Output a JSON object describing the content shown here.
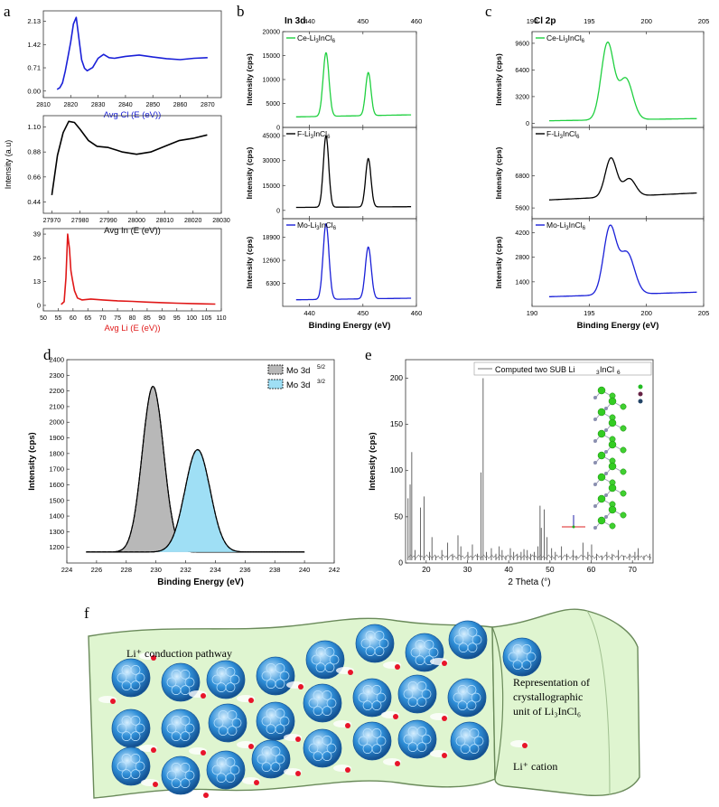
{
  "panels": {
    "a": "a",
    "b": "b",
    "c": "c",
    "d": "d",
    "e": "e",
    "f": "f"
  },
  "colors": {
    "green": "#20d040",
    "black": "#000000",
    "blue": "#1a20d8",
    "red": "#e01818",
    "gray_fill": "#b8b8b8",
    "cyan_fill": "#9fdff5",
    "sheet": "#dff5d0",
    "sheet_edge": "#6a8a5a",
    "spe": "#7a7a7a",
    "sphere": "#2f8fd8",
    "li": "#e8142a"
  },
  "chart_data": [
    {
      "id": "a1",
      "type": "line",
      "xlabel": "Avg Cl (E (eV))",
      "ylabel": "",
      "xlim": [
        2810,
        2875
      ],
      "ylim": [
        -0.2,
        2.45
      ],
      "xticks": [
        "2810",
        "2820",
        "2830",
        "2840",
        "2850",
        "2860",
        "2870"
      ],
      "yticks": [
        "0.00",
        "0.71",
        "1.42",
        "2.13"
      ],
      "x": [
        2815,
        2816,
        2817,
        2818,
        2819,
        2820,
        2821,
        2822,
        2823,
        2824,
        2825,
        2826,
        2828,
        2830,
        2832,
        2834,
        2836,
        2840,
        2845,
        2850,
        2855,
        2860,
        2865,
        2870
      ],
      "y": [
        0.05,
        0.1,
        0.25,
        0.6,
        1.05,
        1.5,
        2.05,
        2.25,
        1.6,
        0.95,
        0.7,
        0.62,
        0.72,
        1.0,
        1.12,
        1.02,
        1.0,
        1.06,
        1.1,
        1.04,
        0.99,
        0.96,
        1.0,
        1.02
      ]
    },
    {
      "id": "a2",
      "type": "line",
      "xlabel": "Avg In (E (eV))",
      "ylabel": "Intensity (a.u)",
      "xlim": [
        27967,
        28030
      ],
      "ylim": [
        0.34,
        1.2
      ],
      "xticks": [
        "27970",
        "27980",
        "27990",
        "28000",
        "28010",
        "28020",
        "28030"
      ],
      "yticks": [
        "0.44",
        "0.66",
        "0.88",
        "1.10"
      ],
      "x": [
        27970,
        27972,
        27974,
        27976,
        27978,
        27980,
        27983,
        27986,
        27990,
        27995,
        28000,
        28005,
        28010,
        28015,
        28020,
        28025
      ],
      "y": [
        0.5,
        0.85,
        1.05,
        1.15,
        1.14,
        1.08,
        0.98,
        0.93,
        0.92,
        0.88,
        0.86,
        0.88,
        0.93,
        0.98,
        1.0,
        1.03
      ]
    },
    {
      "id": "a3",
      "type": "line",
      "xlabel": "Avg Li (E (eV))",
      "ylabel": "",
      "xlim": [
        50,
        110
      ],
      "ylim": [
        -3,
        42
      ],
      "xticks": [
        "50",
        "55",
        "60",
        "65",
        "70",
        "75",
        "80",
        "85",
        "90",
        "95",
        "100",
        "105",
        "110"
      ],
      "yticks": [
        "0",
        "13",
        "26",
        "39"
      ],
      "x": [
        56,
        57,
        57.6,
        58.2,
        58.8,
        59.3,
        59.8,
        60.5,
        61.5,
        63,
        66,
        70,
        75,
        80,
        85,
        90,
        95,
        100,
        105,
        108
      ],
      "y": [
        0.5,
        2,
        15,
        39,
        31,
        19,
        14,
        8,
        4,
        3,
        3.5,
        3,
        2.5,
        2.2,
        1.8,
        1.5,
        1.2,
        1,
        0.8,
        0.7
      ]
    },
    {
      "id": "b",
      "type": "line",
      "title": "In 3d",
      "xlabel": "Binding Energy (eV)",
      "xlim": [
        435,
        460
      ],
      "xticks": [
        "440",
        "450",
        "460"
      ],
      "series": [
        {
          "name": "Ce-Li3InCl6",
          "ylabel": "Intensity (cps)",
          "ylim": [
            0,
            20000
          ],
          "yticks": [
            "0",
            "5000",
            "10000",
            "15000",
            "20000"
          ],
          "peaks": [
            [
              443.1,
              15500,
              0.55
            ],
            [
              451.0,
              11200,
              0.5
            ]
          ],
          "base": 2200
        },
        {
          "name": "F-Li3InCl6",
          "ylabel": "Intensity (cps)",
          "ylim": [
            -5000,
            50000
          ],
          "yticks": [
            "0",
            "15000",
            "30000",
            "45000"
          ],
          "peaks": [
            [
              443.1,
              45000,
              0.5
            ],
            [
              451.0,
              31000,
              0.5
            ]
          ],
          "base": 1800
        },
        {
          "name": "Mo-Li3InCl6",
          "ylabel": "Intensity (cps)",
          "ylim": [
            0,
            24000
          ],
          "yticks": [
            "6300",
            "12600",
            "18900"
          ],
          "peaks": [
            [
              443.1,
              22500,
              0.55
            ],
            [
              451.0,
              16000,
              0.55
            ]
          ],
          "base": 1800
        }
      ]
    },
    {
      "id": "c",
      "type": "line",
      "title": "Cl 2p",
      "xlabel": "Binding Energy (eV)",
      "xlim": [
        190,
        205
      ],
      "xticks": [
        "190",
        "195",
        "200",
        "205"
      ],
      "series": [
        {
          "name": "Ce-Li3InCl6",
          "ylabel": "Intensity (cps)",
          "ylim": [
            -500,
            11000
          ],
          "yticks": [
            "0",
            "3200",
            "6400",
            "9600"
          ],
          "peaks": [
            [
              196.6,
              9500,
              0.55
            ],
            [
              198.2,
              5200,
              0.6
            ]
          ],
          "base": 300
        },
        {
          "name": "F-Li3InCl6",
          "ylabel": "Intensity (cps)",
          "ylim": [
            5200,
            8600
          ],
          "yticks": [
            "5600",
            "6800"
          ],
          "peaks": [
            [
              196.9,
              7350,
              0.5
            ],
            [
              198.5,
              6550,
              0.55
            ]
          ],
          "base": 5900
        },
        {
          "name": "Mo-Li3InCl6",
          "ylabel": "Intensity (cps)",
          "ylim": [
            0,
            5000
          ],
          "yticks": [
            "1400",
            "2800",
            "4200"
          ],
          "peaks": [
            [
              196.8,
              4350,
              0.55
            ],
            [
              198.3,
              2900,
              0.65
            ]
          ],
          "base": 550
        }
      ]
    },
    {
      "id": "d",
      "type": "area",
      "xlabel": "Binding Energy (eV)",
      "ylabel": "Intensity (cps)",
      "xlim": [
        224,
        242
      ],
      "ylim": [
        1100,
        2400
      ],
      "xticks": [
        "224",
        "226",
        "228",
        "230",
        "232",
        "234",
        "236",
        "238",
        "240",
        "242"
      ],
      "yticks": [
        "1200",
        "1300",
        "1400",
        "1500",
        "1600",
        "1700",
        "1800",
        "1900",
        "2000",
        "2100",
        "2200",
        "2300",
        "2400"
      ],
      "baseline": 1170,
      "range": [
        225.3,
        240
      ],
      "series": [
        {
          "name": "Mo 3d",
          "sup": "5/2",
          "center": 229.8,
          "peak": 2230,
          "sigma": 0.72
        },
        {
          "name": "Mo 3d",
          "sup": "3/2",
          "center": 232.8,
          "peak": 1825,
          "sigma": 0.85
        }
      ]
    },
    {
      "id": "e",
      "type": "bar",
      "xlabel": "2 Theta (°)",
      "ylabel": "Intensity (cps)",
      "xlim": [
        15,
        75
      ],
      "ylim": [
        0,
        220
      ],
      "xticks": [
        "20",
        "30",
        "40",
        "50",
        "60",
        "70"
      ],
      "yticks": [
        "0",
        "50",
        "100",
        "150",
        "200"
      ],
      "legend": "Computed two SUB Li3InCl6",
      "x": [
        15.6,
        16.1,
        16.5,
        17.3,
        18.6,
        19.5,
        20.8,
        21.4,
        22.3,
        23.8,
        25.2,
        26.4,
        27.7,
        28.4,
        30.1,
        31.2,
        32.4,
        33.3,
        33.8,
        34.6,
        35.8,
        36.9,
        37.7,
        38.4,
        39.3,
        40.4,
        41.2,
        42.1,
        43.0,
        43.7,
        44.5,
        45.3,
        46.2,
        47.1,
        47.6,
        47.9,
        48.6,
        49.3,
        50.4,
        51.3,
        52.8,
        54.1,
        55.6,
        56.4,
        58.0,
        59.2,
        60.1,
        61.3,
        62.6,
        63.8,
        65.1,
        66.6,
        67.9,
        69.3,
        70.6,
        71.4,
        72.8,
        74.2
      ],
      "y": [
        70,
        85,
        120,
        14,
        60,
        72,
        12,
        28,
        8,
        14,
        22,
        10,
        30,
        18,
        12,
        20,
        10,
        98,
        200,
        12,
        16,
        10,
        18,
        14,
        8,
        16,
        12,
        10,
        12,
        15,
        14,
        10,
        12,
        18,
        62,
        38,
        58,
        28,
        16,
        12,
        18,
        10,
        14,
        8,
        22,
        12,
        20,
        10,
        8,
        12,
        10,
        14,
        8,
        10,
        12,
        16,
        8,
        10
      ]
    }
  ],
  "labels": {
    "legend_d_1": "Mo 3d",
    "legend_d_2": "Mo 3d",
    "legend_e": "Computed two SUB Li",
    "f_pathway": "Li⁺ conduction pathway",
    "f_rep_1": "Representation of",
    "f_rep_2": "crystallographic",
    "f_rep_3": "unit of Li₃InCl₆",
    "f_cation": "Li⁺ cation",
    "axes_glyph": "z y x"
  }
}
